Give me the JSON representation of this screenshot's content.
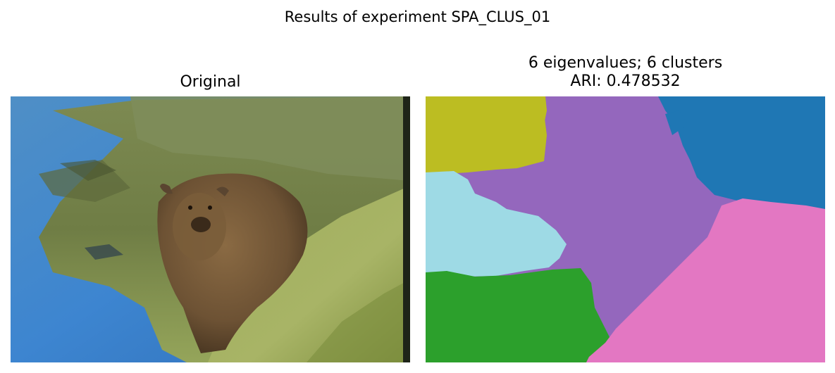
{
  "figure": {
    "suptitle": "Results of experiment SPA_CLUS_01"
  },
  "left_panel": {
    "title": "Original",
    "image_description_icon": "bear-photo"
  },
  "right_panel": {
    "title_line1": "6 eigenvalues; 6 clusters",
    "title_line2": "ARI: 0.478532",
    "clusters": [
      {
        "name": "cluster-olive",
        "color": "#bcbd22"
      },
      {
        "name": "cluster-purple",
        "color": "#9467bd"
      },
      {
        "name": "cluster-blue",
        "color": "#1f77b4"
      },
      {
        "name": "cluster-lightblue",
        "color": "#9edae5"
      },
      {
        "name": "cluster-green",
        "color": "#2ca02c"
      },
      {
        "name": "cluster-pink",
        "color": "#e377c2"
      }
    ]
  }
}
